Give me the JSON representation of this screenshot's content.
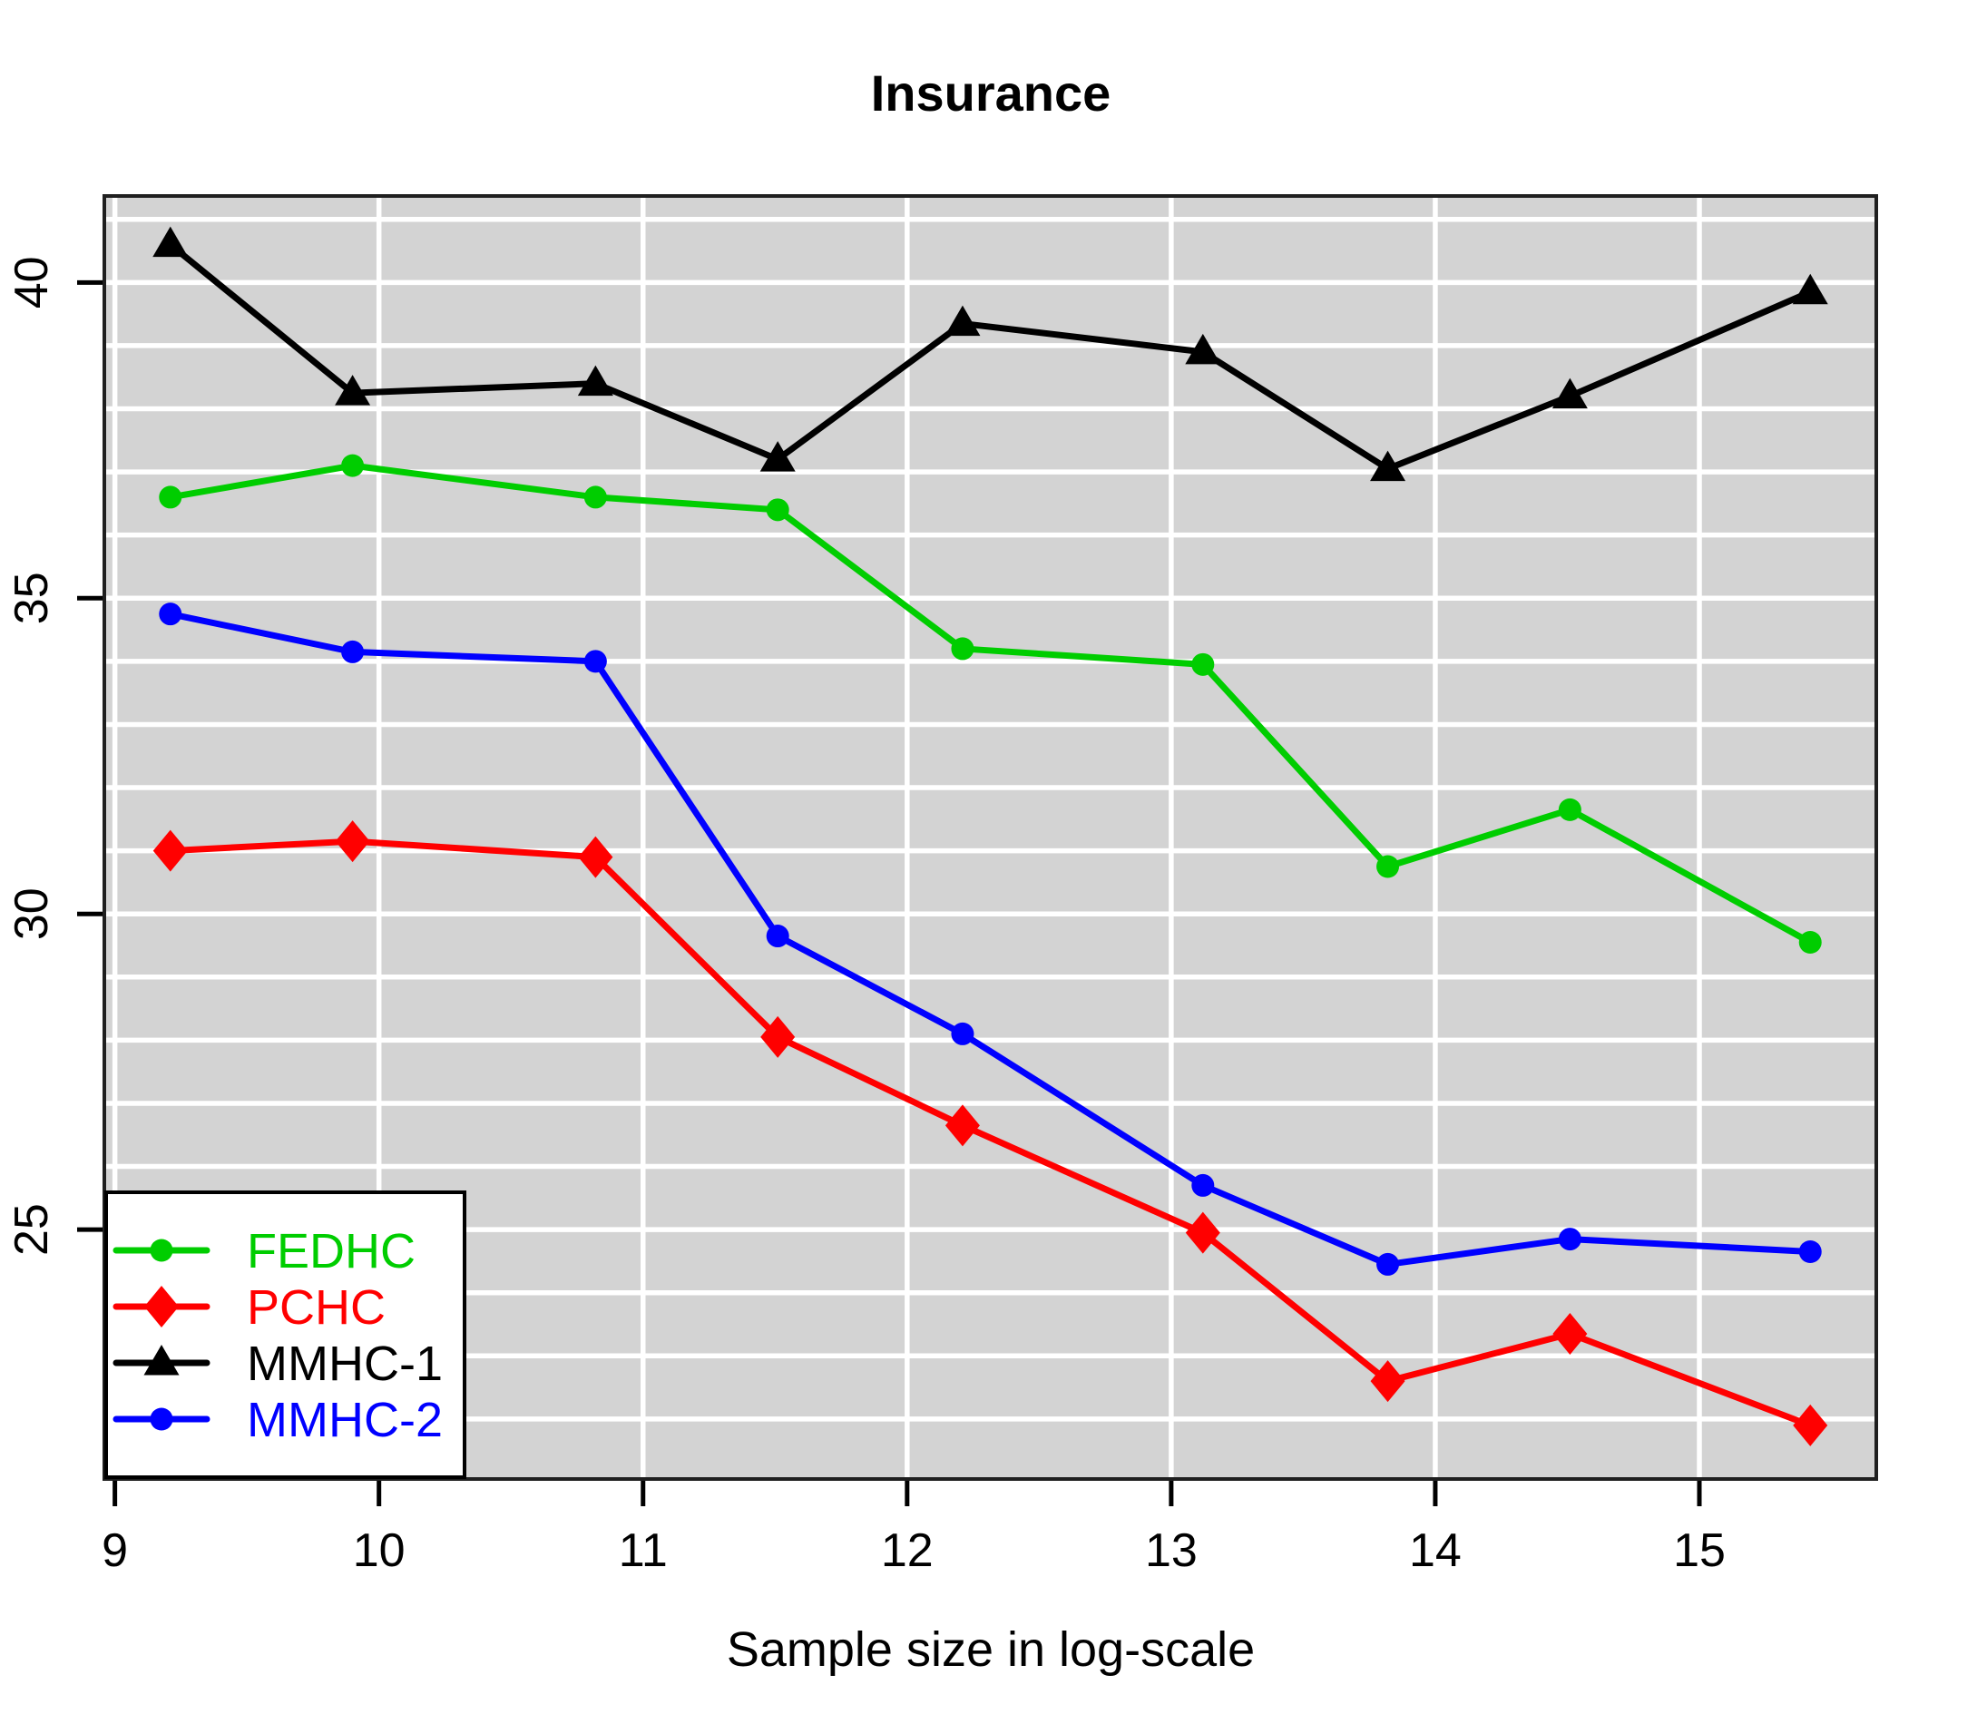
{
  "chart_data": {
    "type": "line",
    "title": "Insurance",
    "xlabel": "Sample size in log-scale",
    "ylabel": "",
    "x": [
      9.21,
      9.9,
      10.82,
      11.51,
      12.21,
      13.12,
      13.82,
      14.51,
      15.42
    ],
    "xlim": [
      8.96,
      15.67
    ],
    "ylim": [
      21.05,
      41.37
    ],
    "x_ticks": [
      9,
      10,
      11,
      12,
      13,
      14,
      15
    ],
    "y_ticks": [
      25,
      30,
      35,
      40
    ],
    "grid_x_lines": [
      9,
      10,
      11,
      12,
      13,
      14,
      15
    ],
    "grid_y_lines": [
      22,
      23,
      24,
      25,
      26,
      27,
      28,
      29,
      30,
      31,
      32,
      33,
      34,
      35,
      36,
      37,
      38,
      39,
      40,
      41
    ],
    "grid_color": "#FFFFFF",
    "plot_bg_color": "#D3D3D3",
    "border_color": "#1F1F1F",
    "legend_position": "bottom-left",
    "series": [
      {
        "name": "FEDHC",
        "color": "#00CD00",
        "marker": "circle",
        "values": [
          36.6,
          37.1,
          36.6,
          36.4,
          34.2,
          33.95,
          30.75,
          31.65,
          29.55
        ]
      },
      {
        "name": "PCHC",
        "color": "#FF0000",
        "marker": "diamond",
        "values": [
          31.0,
          31.15,
          30.9,
          28.05,
          26.65,
          24.95,
          22.6,
          23.35,
          21.9
        ]
      },
      {
        "name": "MMHC-1",
        "color": "#000000",
        "marker": "triangle",
        "values": [
          40.6,
          38.25,
          38.4,
          37.2,
          39.35,
          38.9,
          37.05,
          38.2,
          39.85
        ]
      },
      {
        "name": "MMHC-2",
        "color": "#0000FF",
        "marker": "circle",
        "values": [
          34.75,
          34.15,
          34.0,
          29.65,
          28.1,
          25.7,
          24.45,
          24.85,
          24.65
        ]
      }
    ]
  }
}
